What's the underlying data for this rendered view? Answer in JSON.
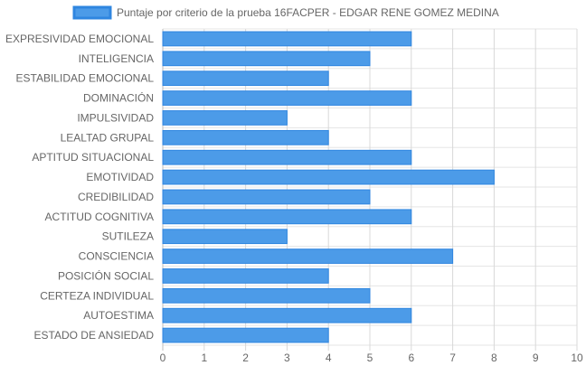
{
  "chart_data": {
    "type": "bar",
    "orientation": "horizontal",
    "legend_position": "top",
    "grid": true,
    "xlim": [
      0,
      10
    ],
    "x_ticks": [
      "0",
      "1",
      "2",
      "3",
      "4",
      "5",
      "6",
      "7",
      "8",
      "9",
      "10"
    ],
    "categories": [
      "EXPRESIVIDAD EMOCIONAL",
      "INTELIGENCIA",
      "ESTABILIDAD EMOCIONAL",
      "DOMINACIÓN",
      "IMPULSIVIDAD",
      "LEALTAD GRUPAL",
      "APTITUD SITUACIONAL",
      "EMOTIVIDAD",
      "CREDIBILIDAD",
      "ACTITUD COGNITIVA",
      "SUTILEZA",
      "CONSCIENCIA",
      "POSICIÓN SOCIAL",
      "CERTEZA INDIVIDUAL",
      "AUTOESTIMA",
      "ESTADO DE ANSIEDAD"
    ],
    "series": [
      {
        "name": "Puntaje por criterio de la prueba 16FACPER - EDGAR RENE GOMEZ MEDINA",
        "color": "#4c9be8",
        "border_color": "#2f86e0",
        "values": [
          6,
          5,
          4,
          6,
          3,
          4,
          6,
          8,
          5,
          6,
          3,
          7,
          4,
          5,
          6,
          4
        ]
      }
    ]
  }
}
